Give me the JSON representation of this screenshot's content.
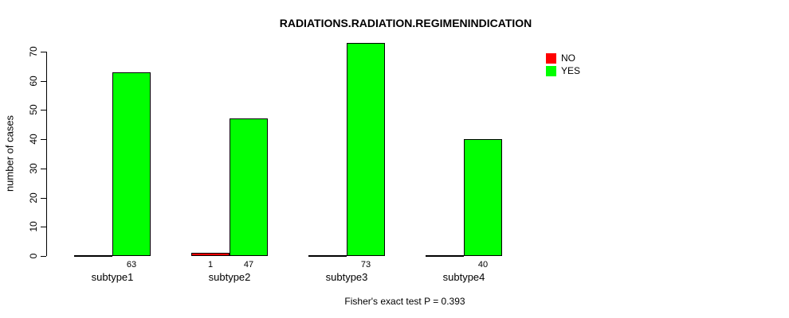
{
  "chart_data": {
    "type": "bar",
    "title": "RADIATIONS.RADIATION.REGIMENINDICATION",
    "xlabel": "",
    "ylabel": "number of cases",
    "ylim": [
      0,
      70
    ],
    "yticks": [
      0,
      10,
      20,
      30,
      40,
      50,
      60,
      70
    ],
    "grid": false,
    "legend_position": "top-right",
    "categories": [
      "subtype1",
      "subtype2",
      "subtype3",
      "subtype4"
    ],
    "series": [
      {
        "name": "NO",
        "color": "#ff0000",
        "values": [
          0,
          1,
          0,
          0
        ],
        "value_labels": [
          "",
          "1",
          "",
          ""
        ]
      },
      {
        "name": "YES",
        "color": "#00ff00",
        "values": [
          63,
          47,
          73,
          40
        ],
        "value_labels": [
          "63",
          "47",
          "73",
          "40"
        ]
      }
    ],
    "annotation": "Fisher's exact test P = 0.393"
  }
}
